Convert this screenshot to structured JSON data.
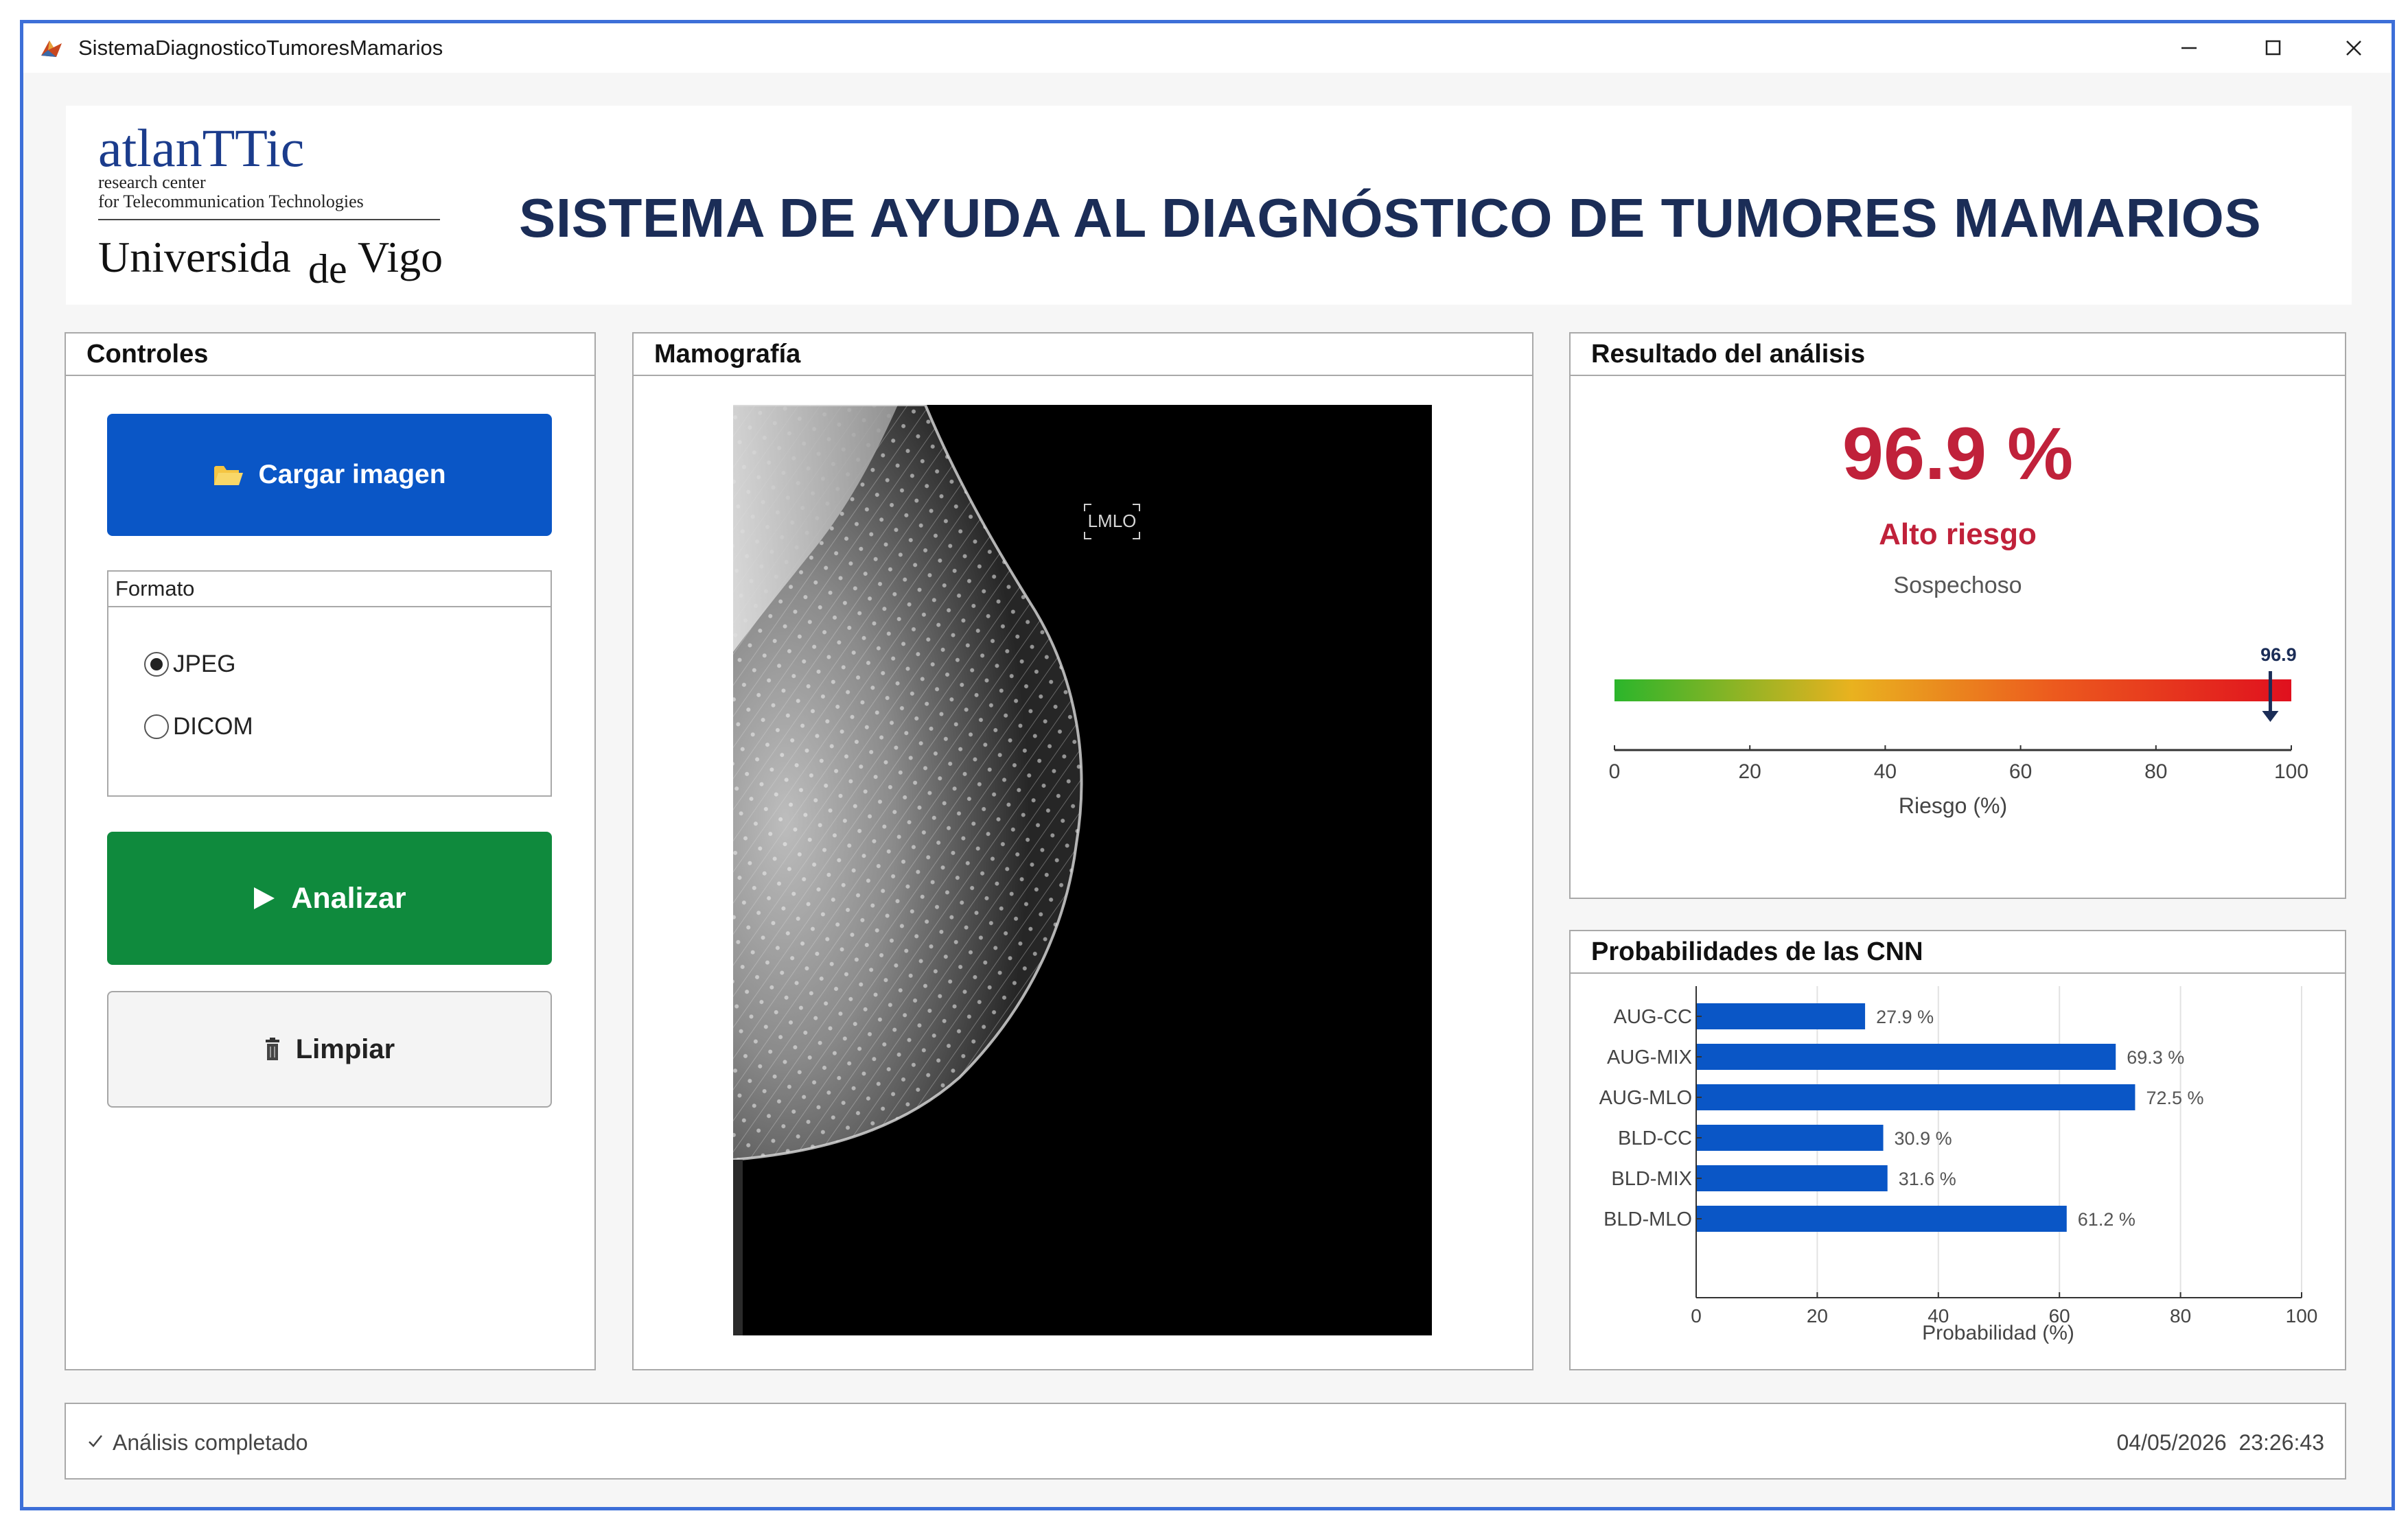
{
  "window": {
    "title": "SistemaDiagnosticoTumoresMamarios",
    "icon": "matlab-app-icon",
    "controls": [
      "minimize",
      "maximize",
      "close"
    ]
  },
  "header": {
    "logo": {
      "line1": "atlanTTic",
      "line2": "research center",
      "line3": "for Telecommunication Technologies",
      "line4": "UniversidadeVigo"
    },
    "title": "SISTEMA DE AYUDA AL DIAGNÓSTICO DE TUMORES MAMARIOS"
  },
  "controls_panel": {
    "title": "Controles",
    "load_button": {
      "label": "Cargar imagen",
      "icon": "folder-icon"
    },
    "format_group": {
      "title": "Formato",
      "options": [
        {
          "label": "JPEG",
          "selected": true
        },
        {
          "label": "DICOM",
          "selected": false
        }
      ]
    },
    "analyze_button": {
      "label": "Analizar",
      "icon": "play-icon"
    },
    "clear_button": {
      "label": "Limpiar",
      "icon": "trash-icon"
    }
  },
  "mammography_panel": {
    "title": "Mamografía",
    "view_label": "LMLO"
  },
  "result_panel": {
    "title": "Resultado del análisis",
    "risk_percent": "96.9 %",
    "risk_level": "Alto riesgo",
    "classification": "Sospechoso",
    "gauge": {
      "value": 96.9,
      "value_label": "96.9",
      "min": 0,
      "max": 100,
      "ticks": [
        "0",
        "20",
        "40",
        "60",
        "80",
        "100"
      ],
      "axis_label": "Riesgo (%)"
    }
  },
  "cnn_panel": {
    "title": "Probabilidades de las CNN",
    "chart_data": {
      "type": "bar",
      "orientation": "horizontal",
      "categories": [
        "AUG-CC",
        "AUG-MIX",
        "AUG-MLO",
        "BLD-CC",
        "BLD-MIX",
        "BLD-MLO"
      ],
      "values": [
        27.9,
        69.3,
        72.5,
        30.9,
        31.6,
        61.2
      ],
      "value_labels": [
        "27.9 %",
        "69.3 %",
        "72.5 %",
        "30.9 %",
        "31.6 %",
        "61.2 %"
      ],
      "xlabel": "Probabilidad (%)",
      "xlim": [
        0,
        100
      ],
      "xticks": [
        "0",
        "20",
        "40",
        "60",
        "80",
        "100"
      ],
      "grid": true,
      "bar_color": "#0a56c6"
    }
  },
  "status_bar": {
    "message": "Análisis completado",
    "datetime": "04/05/2026  23:26:43"
  },
  "colors": {
    "primary_blue": "#0a56c6",
    "analyze_green": "#0f8a3d",
    "risk_red": "#c0213a",
    "heading_navy": "#1b2d57",
    "window_border": "#3d6fd8"
  }
}
